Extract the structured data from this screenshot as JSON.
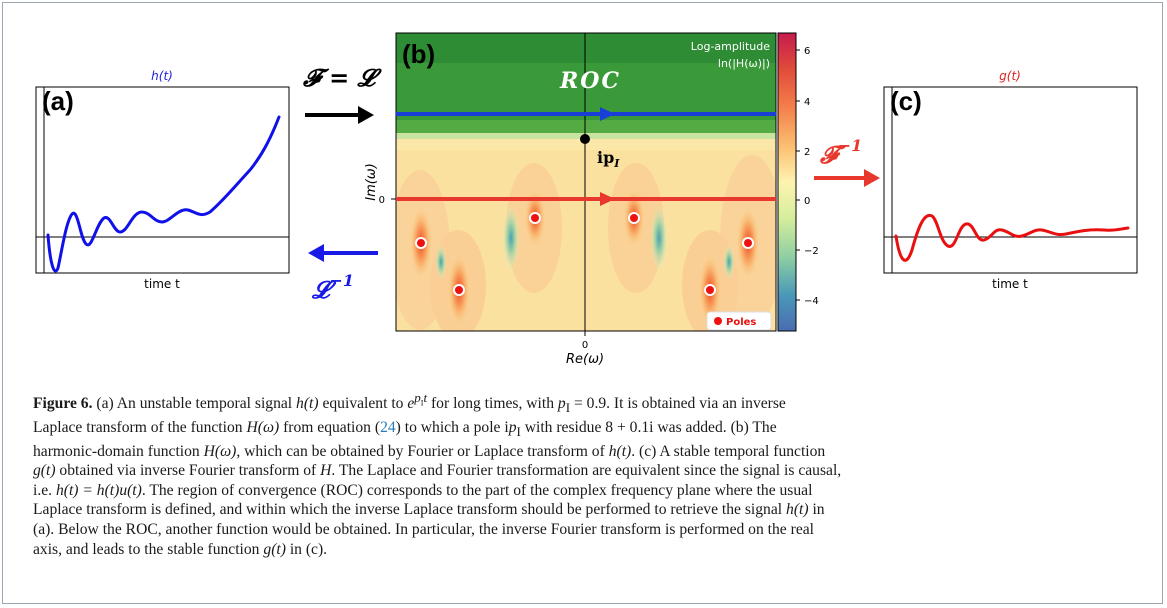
{
  "panel_a": {
    "label": "(a)",
    "title": "h(t)",
    "xlabel": "time t",
    "title_color": "#1f1fe0",
    "line_color": "#1010e8"
  },
  "panel_c": {
    "label": "(c)",
    "title": "g(t)",
    "xlabel": "time t",
    "title_color": "#e02020",
    "line_color": "#e81010"
  },
  "panel_b": {
    "label": "(b)",
    "roc_label": "ROC",
    "pole_label": "ip",
    "pole_subscript": "I",
    "ylabel": "Im(ω)",
    "xlabel": "Re(ω)",
    "xtick": "0",
    "ytick": "0",
    "legend_label": "Poles",
    "colorbar_title_1": "Log-amplitude",
    "colorbar_title_2": "ln(|H(ω)|)",
    "colorbar_ticks": [
      "6",
      "4",
      "2",
      "0",
      "−2",
      "−4"
    ]
  },
  "arrows": {
    "top_left_label": "𝓕 = 𝓛",
    "bottom_left_label": "𝓛",
    "bottom_left_sup": "−1",
    "right_label": "𝓕",
    "right_sup": "−1",
    "blue": "#1a1ae6",
    "red": "#e8372c",
    "black": "#000000"
  },
  "caption": {
    "fig_label": "Figure 6.",
    "p1": "(a) An unstable temporal signal",
    "h_t": "h(t)",
    "p2": "equivalent to",
    "exp_base": "e",
    "exp_sup": "p",
    "exp_sub": "I",
    "exp_sup_t": "t",
    "p3": "for long times, with",
    "pI": "p",
    "pI_sub": "I",
    "p3b": "= 0.9. It is obtained via an inverse",
    "p4": "Laplace transform of the function",
    "H_w": "H(ω)",
    "p5": "from equation (",
    "eq_ref": "24",
    "p6": ") to which a pole i",
    "p6b": "p",
    "p6c": "I",
    "p7": "with residue 8 + 0.1i was added. (b) The",
    "p8": "harmonic-domain function",
    "H_w2": "H(ω)",
    "p9": ", which can be obtained by Fourier or Laplace transform of",
    "h_t2": "h(t)",
    "p10": ". (c) A stable temporal function",
    "g_t": "g(t)",
    "p11": "obtained via inverse Fourier transform of",
    "H": "H",
    "p12": ". The Laplace and Fourier transformation are equivalent since the signal is causal,",
    "p13": "i.e.",
    "eqn": "h(t) = h(t)u(t)",
    "p14": ". The region of convergence (ROC) corresponds to the part of the complex frequency plane where the usual",
    "p15": "Laplace transform is defined, and within which the inverse Laplace transform should be performed to retrieve the signal",
    "h_t3": "h(t)",
    "p16": "in",
    "p17": "(a). Below the ROC, another function would be obtained. In particular, the inverse Fourier transform is performed on the real",
    "p18": "axis, and leads to the stable function",
    "g_t2": "g(t)",
    "p19": "in (c)."
  }
}
